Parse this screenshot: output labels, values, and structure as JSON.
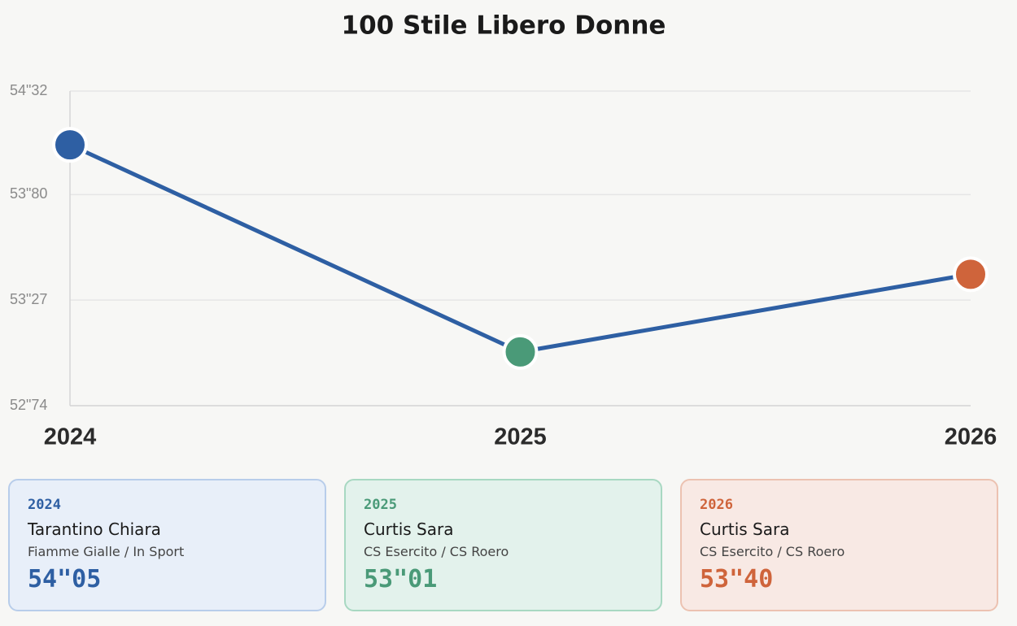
{
  "chart_data": {
    "type": "line",
    "title": "100 Stile Libero Donne",
    "categories": [
      "2024",
      "2025",
      "2026"
    ],
    "values": [
      54.05,
      53.01,
      53.4
    ],
    "value_labels": [
      "54\"05",
      "53\"01",
      "53\"40"
    ],
    "line_color": "#2e5fa3",
    "point_colors": [
      "#2e5fa3",
      "#4a9a78",
      "#cf643b"
    ],
    "ylim": [
      52.74,
      54.32
    ],
    "yticks": [
      {
        "value": 52.74,
        "label": "52\"74"
      },
      {
        "value": 53.27,
        "label": "53\"27"
      },
      {
        "value": 53.8,
        "label": "53\"80"
      },
      {
        "value": 54.32,
        "label": "54\"32"
      }
    ],
    "grid": true
  },
  "cards": [
    {
      "athlete": "Tarantino Chiara",
      "club": "Fiamme Gialle / In Sport"
    },
    {
      "athlete": "Curtis Sara",
      "club": "CS Esercito / CS Roero"
    },
    {
      "athlete": "Curtis Sara",
      "club": "CS Esercito / CS Roero"
    }
  ]
}
